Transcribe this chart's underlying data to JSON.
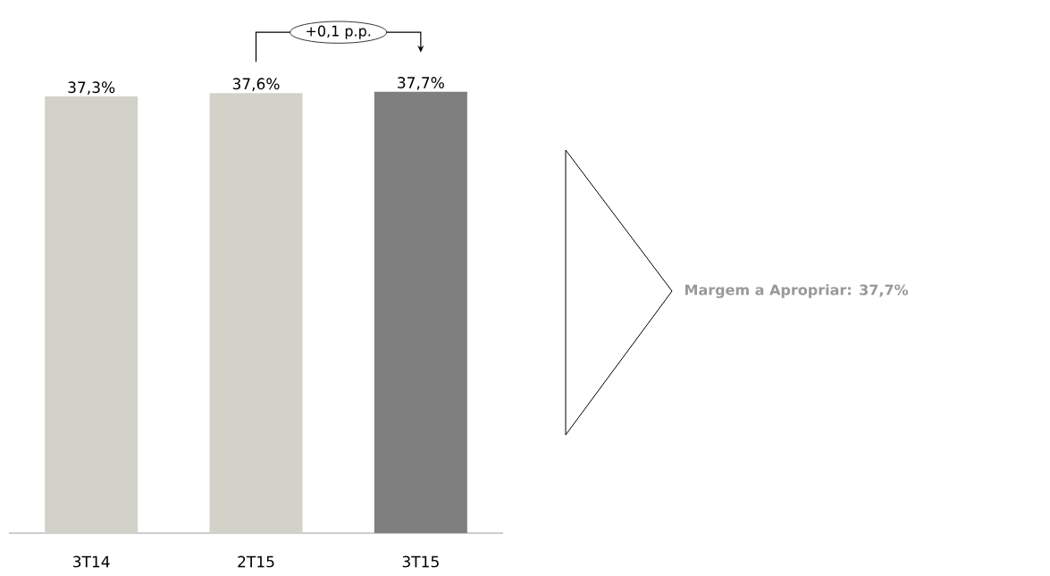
{
  "chart_data": {
    "type": "bar",
    "categories": [
      "3T14",
      "2T15",
      "3T15"
    ],
    "values": [
      37.3,
      37.6,
      37.7
    ],
    "colors": [
      "#d2d2c8",
      "#d2d2c8",
      "#7f7f7f"
    ],
    "value_labels": [
      "37,3%",
      "37,6%",
      "37,7%"
    ],
    "annotations": [
      "+0,1 p.p.",
      "Margem a Apropriar: 37,7%"
    ]
  }
}
